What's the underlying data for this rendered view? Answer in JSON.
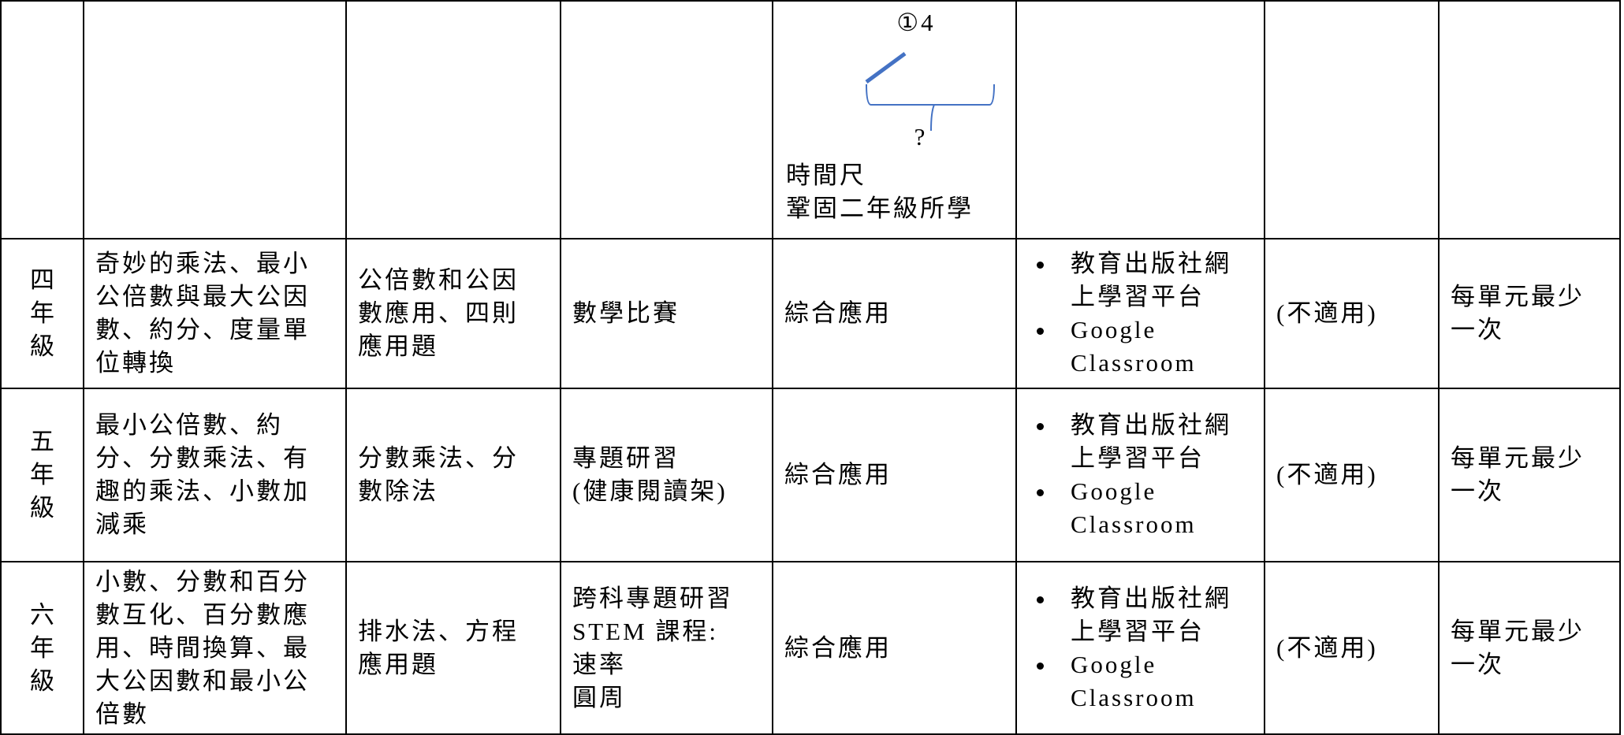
{
  "table": {
    "top_row": {
      "diagram_label": "①4",
      "diagram_question": "?",
      "lines": [
        "時間尺",
        "鞏固二年級所學"
      ]
    },
    "rows": [
      {
        "grade": "四年級",
        "units": [
          "奇妙的乘法、最小",
          "公倍數與最大公因",
          "數、約分、度量單",
          "位轉換"
        ],
        "topics": [
          "公倍數和公因",
          "數應用、四則",
          "應用題"
        ],
        "activity": [
          "數學比賽"
        ],
        "ability": "綜合應用",
        "platforms": [
          [
            "教育出版社網",
            "上學習平台"
          ],
          [
            "Google",
            "Classroom"
          ]
        ],
        "other": "(不適用)",
        "frequency": [
          "每單元最少",
          "一次"
        ]
      },
      {
        "grade": "五年級",
        "units": [
          "最小公倍數、約",
          "分、分數乘法、有",
          "趣的乘法、小數加",
          "減乘"
        ],
        "topics": [
          "分數乘法、分",
          "數除法"
        ],
        "activity": [
          "專題研習",
          "(健康閱讀架)"
        ],
        "ability": "綜合應用",
        "platforms": [
          [
            "教育出版社網",
            "上學習平台"
          ],
          [
            "Google",
            "Classroom"
          ]
        ],
        "other": "(不適用)",
        "frequency": [
          "每單元最少",
          "一次"
        ]
      },
      {
        "grade": "六年級",
        "units": [
          "小數、分數和百分",
          "數互化、百分數應",
          "用、時間換算、最",
          "大公因數和最小公",
          "倍數"
        ],
        "topics": [
          "排水法、方程",
          "應用題"
        ],
        "activity": [
          "跨科專題研習",
          "STEM 課程:",
          "速率",
          "圓周"
        ],
        "ability": "綜合應用",
        "platforms": [
          [
            "教育出版社網",
            "上學習平台"
          ],
          [
            "Google",
            "Classroom"
          ]
        ],
        "other": "(不適用)",
        "frequency": [
          "每單元最少",
          "一次"
        ]
      }
    ]
  }
}
